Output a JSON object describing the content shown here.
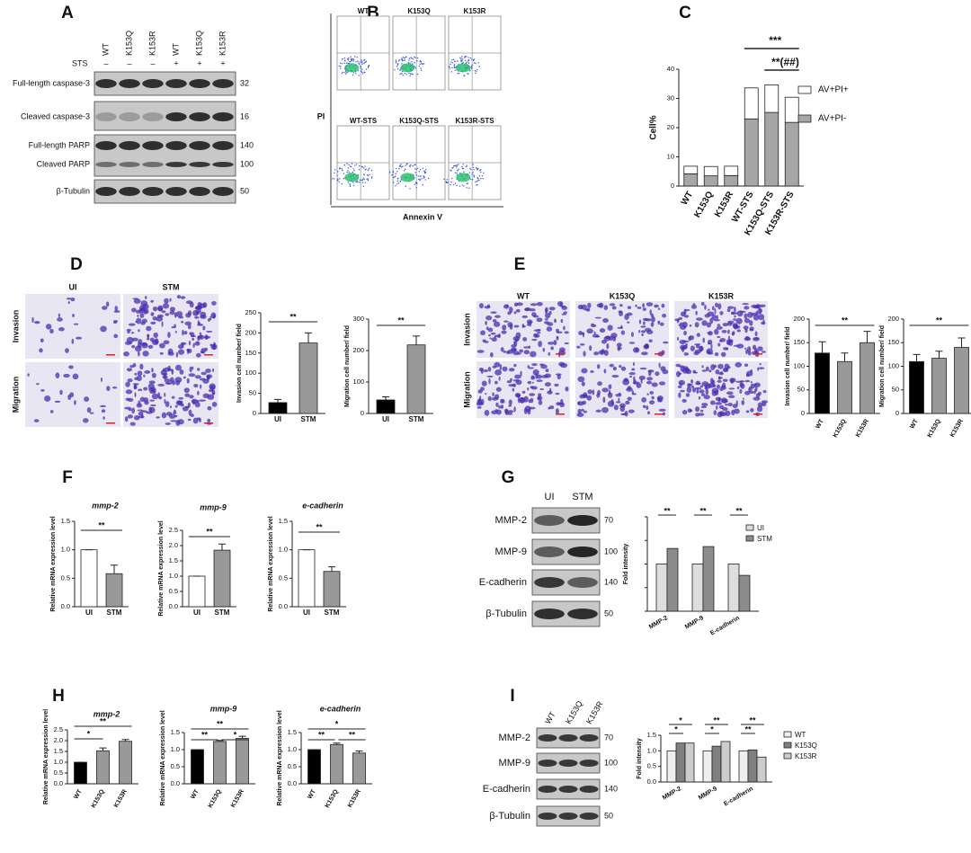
{
  "figure": {
    "letters": [
      "A",
      "B",
      "C",
      "D",
      "E",
      "F",
      "G",
      "H",
      "I"
    ],
    "blot_a": {
      "lanes": [
        "WT",
        "K153Q",
        "K153R",
        "WT",
        "K153Q",
        "K153R"
      ],
      "sts_label": "STS",
      "sts": [
        "–",
        "–",
        "–",
        "+",
        "+",
        "+"
      ],
      "bands": [
        {
          "label": "Full-length caspase-3",
          "mw": "32"
        },
        {
          "label": "Cleaved caspase-3",
          "mw": "16"
        },
        {
          "label": "Full-length PARP",
          "mw": "140"
        },
        {
          "label": "Cleaved PARP",
          "mw": "100"
        },
        {
          "label": "β-Tubulin",
          "mw": "50"
        }
      ]
    },
    "flow_b": {
      "plots": [
        "WT",
        "K153Q",
        "K153R",
        "WT-STS",
        "K153Q-STS",
        "K153R-STS"
      ],
      "y_label": "PI",
      "x_label": "Annexin V"
    },
    "images_d": {
      "columns": [
        "UI",
        "STM"
      ],
      "rows": [
        "Invasion",
        "Migration"
      ]
    },
    "images_e": {
      "columns": [
        "WT",
        "K153Q",
        "K153R"
      ],
      "rows": [
        "Invasion",
        "Migration"
      ]
    },
    "blot_g": {
      "lanes": [
        "UI",
        "STM"
      ],
      "bands": [
        {
          "label": "MMP-2",
          "mw": "70"
        },
        {
          "label": "MMP-9",
          "mw": "100"
        },
        {
          "label": "E-cadherin",
          "mw": "140"
        },
        {
          "label": "β-Tubulin",
          "mw": "50"
        }
      ]
    },
    "blot_i": {
      "lanes": [
        "WT",
        "K153Q",
        "K153R"
      ],
      "bands": [
        {
          "label": "MMP-2",
          "mw": "70"
        },
        {
          "label": "MMP-9",
          "mw": "100"
        },
        {
          "label": "E-cadherin",
          "mw": "140"
        },
        {
          "label": "β-Tubulin",
          "mw": "50"
        }
      ]
    }
  },
  "chart_data": [
    {
      "type": "stacked_bar",
      "ylabel": "Cell%",
      "categories": [
        "WT",
        "K153Q",
        "K153R",
        "WT-STS",
        "K153Q-STS",
        "K153R-STS"
      ],
      "series": [
        {
          "name": "AV+PI-",
          "color": "#a6a6a6",
          "values": [
            4.2,
            3.5,
            3.6,
            23.0,
            25.2,
            21.8
          ]
        },
        {
          "name": "AV+PI+",
          "color": "#ffffff",
          "values": [
            2.6,
            3.2,
            3.2,
            10.6,
            9.4,
            8.6
          ]
        }
      ],
      "ylim": [
        0,
        40
      ],
      "yticks": [
        0,
        10,
        20,
        30,
        40
      ],
      "annotations": [
        "***",
        "**(##)"
      ]
    },
    {
      "type": "bar",
      "ylabel": "Invasion cell number/ field",
      "categories": [
        "UI",
        "STM"
      ],
      "values": [
        27,
        175
      ],
      "errors": [
        8,
        25
      ],
      "colors": [
        "#000000",
        "#999999"
      ],
      "ylim": [
        0,
        250
      ],
      "yticks": [
        0,
        50,
        100,
        150,
        200,
        250
      ],
      "annotations": [
        "**"
      ]
    },
    {
      "type": "bar",
      "ylabel": "Migration cell number/ field",
      "categories": [
        "UI",
        "STM"
      ],
      "values": [
        43,
        218
      ],
      "errors": [
        10,
        28
      ],
      "colors": [
        "#000000",
        "#999999"
      ],
      "ylim": [
        0,
        300
      ],
      "yticks": [
        0,
        100,
        200,
        300
      ],
      "annotations": [
        "**"
      ]
    },
    {
      "type": "bar",
      "ylabel": "Invasion cell number/ field",
      "categories": [
        "WT",
        "K153Q",
        "K153R"
      ],
      "values": [
        128,
        110,
        150
      ],
      "errors": [
        24,
        18,
        24
      ],
      "colors": [
        "#000000",
        "#999999",
        "#999999"
      ],
      "ylim": [
        0,
        200
      ],
      "yticks": [
        0,
        50,
        100,
        150,
        200
      ],
      "annotations": [
        "**"
      ]
    },
    {
      "type": "bar",
      "ylabel": "Migration cell number/ field",
      "categories": [
        "WT",
        "K153Q",
        "K153R"
      ],
      "values": [
        110,
        117,
        140
      ],
      "errors": [
        15,
        15,
        20
      ],
      "colors": [
        "#000000",
        "#999999",
        "#999999"
      ],
      "ylim": [
        0,
        200
      ],
      "yticks": [
        0,
        50,
        100,
        150,
        200
      ],
      "annotations": [
        "**"
      ]
    },
    {
      "type": "bar",
      "title": "mmp-2",
      "ylabel": "Relative mRNA expression level",
      "categories": [
        "UI",
        "STM"
      ],
      "values": [
        1.0,
        0.58
      ],
      "errors": [
        0,
        0.15
      ],
      "colors": [
        "#ffffff",
        "#999999"
      ],
      "ylim": [
        0,
        1.5
      ],
      "yticks": [
        {
          "value": 0,
          "label": "0.0"
        },
        0.5,
        {
          "value": 1,
          "label": "1.0"
        },
        1.5
      ],
      "annotations": [
        "**"
      ]
    },
    {
      "type": "bar",
      "title": "mmp-9",
      "ylabel": "Relative mRNA expression level",
      "categories": [
        "UI",
        "STM"
      ],
      "values": [
        1.0,
        1.85
      ],
      "errors": [
        0,
        0.2
      ],
      "colors": [
        "#ffffff",
        "#999999"
      ],
      "ylim": [
        0,
        2.5
      ],
      "yticks": [
        {
          "value": 0,
          "label": "0.0"
        },
        0.5,
        {
          "value": 1,
          "label": "1.0"
        },
        1.5,
        {
          "value": 2,
          "label": "2.0"
        },
        2.5
      ],
      "annotations": [
        "**"
      ]
    },
    {
      "type": "bar",
      "title": "e-cadherin",
      "ylabel": "Relative mRNA expression level",
      "categories": [
        "UI",
        "STM"
      ],
      "values": [
        1.0,
        0.62
      ],
      "errors": [
        0,
        0.08
      ],
      "colors": [
        "#ffffff",
        "#999999"
      ],
      "ylim": [
        0,
        1.5
      ],
      "yticks": [
        {
          "value": 0,
          "label": "0.0"
        },
        0.5,
        {
          "value": 1,
          "label": "1.0"
        },
        1.5
      ],
      "annotations": [
        "**"
      ]
    },
    {
      "type": "grouped_bar",
      "ylabel": "Fold intensity",
      "categories": [
        "MMP-2",
        "MMP-9",
        "E-cadherin"
      ],
      "series": [
        {
          "name": "UI",
          "color": "#dddddd",
          "values": [
            1.0,
            1.0,
            1.0
          ]
        },
        {
          "name": "STM",
          "color": "#8c8c8c",
          "values": [
            1.33,
            1.37,
            0.76
          ]
        }
      ],
      "ylim": [
        0,
        2
      ],
      "annotations": [
        [
          "**"
        ],
        [
          "**"
        ],
        [
          "**"
        ]
      ]
    },
    {
      "type": "bar",
      "title": "mmp-2",
      "ylabel": "Relative mRNA expression level",
      "categories": [
        "WT",
        "K153Q",
        "K153R"
      ],
      "values": [
        1.0,
        1.53,
        1.97
      ],
      "errors": [
        0,
        0.13,
        0.08
      ],
      "colors": [
        "#000000",
        "#999999",
        "#999999"
      ],
      "ylim": [
        0,
        2.5
      ],
      "yticks": [
        {
          "value": 0,
          "label": "0.0"
        },
        0.5,
        {
          "value": 1,
          "label": "1.0"
        },
        1.5,
        {
          "value": 2,
          "label": "2.0"
        },
        2.5
      ],
      "annotations": [
        "*",
        "**"
      ]
    },
    {
      "type": "bar",
      "title": "mmp-9",
      "ylabel": "Relative mRNA expression level",
      "categories": [
        "WT",
        "K153Q",
        "K153R"
      ],
      "values": [
        1.0,
        1.24,
        1.33
      ],
      "errors": [
        0,
        0.03,
        0.06
      ],
      "colors": [
        "#000000",
        "#999999",
        "#999999"
      ],
      "ylim": [
        0,
        1.5
      ],
      "yticks": [
        {
          "value": 0,
          "label": "0.0"
        },
        0.5,
        {
          "value": 1,
          "label": "1.0"
        },
        1.5
      ],
      "annotations": [
        "**",
        "*",
        "**"
      ]
    },
    {
      "type": "bar",
      "title": "e-cadherin",
      "ylabel": "Relative mRNA expression level",
      "categories": [
        "WT",
        "K153Q",
        "K153R"
      ],
      "values": [
        1.0,
        1.15,
        0.9
      ],
      "errors": [
        0,
        0.04,
        0.06
      ],
      "colors": [
        "#000000",
        "#999999",
        "#999999"
      ],
      "ylim": [
        0,
        1.5
      ],
      "yticks": [
        {
          "value": 0,
          "label": "0.0"
        },
        0.5,
        {
          "value": 1,
          "label": "1.0"
        },
        1.5
      ],
      "annotations": [
        "**",
        "**",
        "*"
      ]
    },
    {
      "type": "grouped_bar",
      "ylabel": "Fold intensity",
      "categories": [
        "MMP-2",
        "MMP-9",
        "E-cadherin"
      ],
      "series": [
        {
          "name": "WT",
          "color": "#eeeeee",
          "values": [
            1.0,
            1.0,
            1.0
          ]
        },
        {
          "name": "K153Q",
          "color": "#7f7f7f",
          "values": [
            1.25,
            1.15,
            1.03
          ]
        },
        {
          "name": "K153R",
          "color": "#cccccc",
          "values": [
            1.25,
            1.3,
            0.8
          ]
        }
      ],
      "ylim": [
        0,
        1.5
      ],
      "yticks": [
        {
          "value": 0,
          "label": "0.0"
        },
        0.5,
        {
          "value": 1,
          "label": "1.0"
        },
        1.5
      ],
      "annotations": [
        [
          "*",
          "*"
        ],
        [
          "*",
          "**"
        ],
        [
          "**",
          "**"
        ]
      ]
    }
  ]
}
